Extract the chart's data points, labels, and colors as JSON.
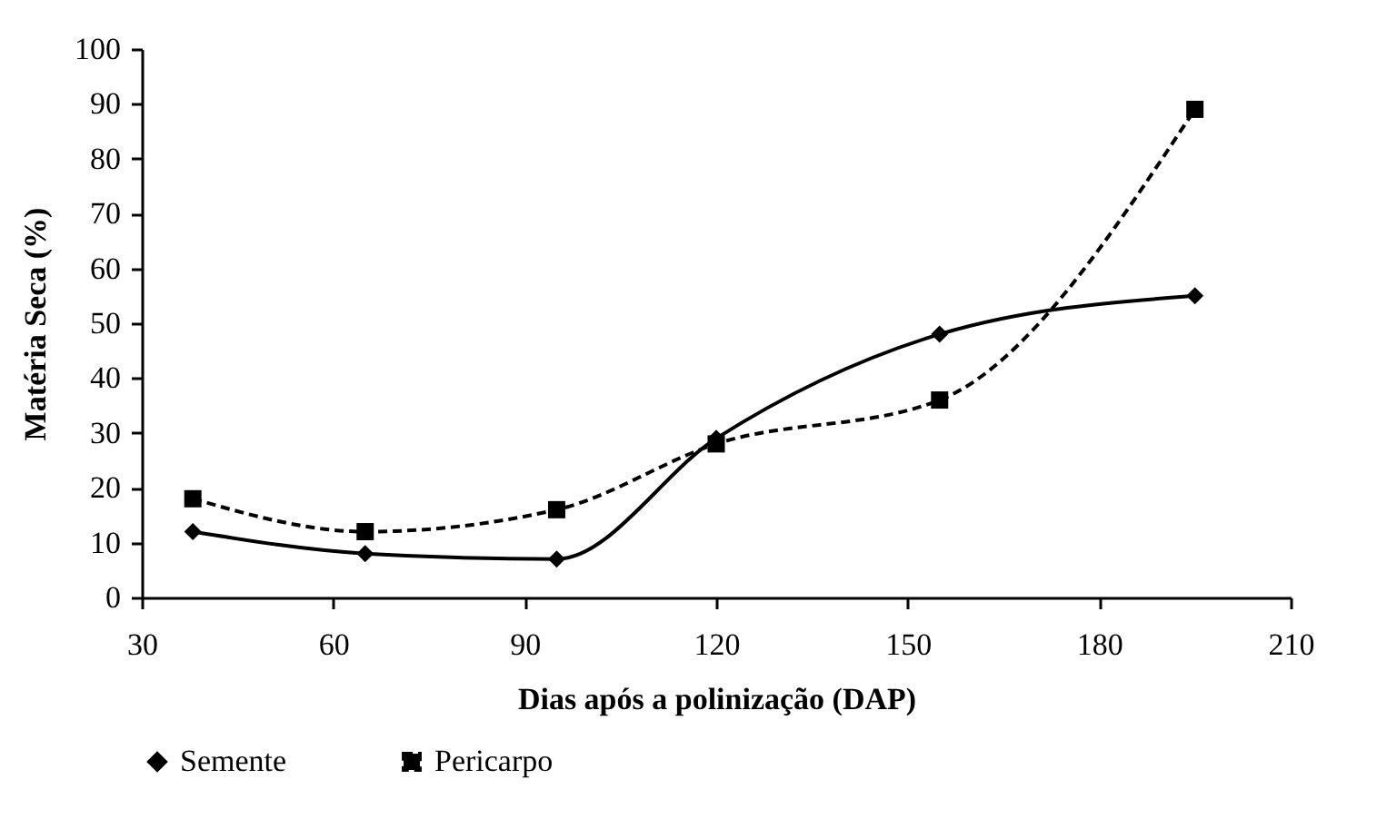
{
  "chart_data": {
    "type": "line",
    "xlabel": "Dias após a polinização (DAP)",
    "ylabel": "Matéria Seca (%)",
    "x": [
      38,
      65,
      95,
      120,
      155,
      195
    ],
    "series": [
      {
        "name": "Semente",
        "color": "#000000",
        "marker": "diamond",
        "line_style": "solid",
        "values": [
          12,
          8,
          7,
          29,
          48,
          55
        ]
      },
      {
        "name": "Pericarpo",
        "color": "#000000",
        "marker": "square",
        "line_style": "dashed",
        "values": [
          18,
          12,
          16,
          28,
          36,
          89
        ]
      }
    ],
    "xlim": [
      30,
      210
    ],
    "xticks": [
      30,
      60,
      90,
      120,
      150,
      180,
      210
    ],
    "ylim": [
      0,
      100
    ],
    "yticks": [
      0,
      10,
      20,
      30,
      40,
      50,
      60,
      70,
      80,
      90,
      100
    ],
    "grid": false,
    "legend": "bottom"
  }
}
